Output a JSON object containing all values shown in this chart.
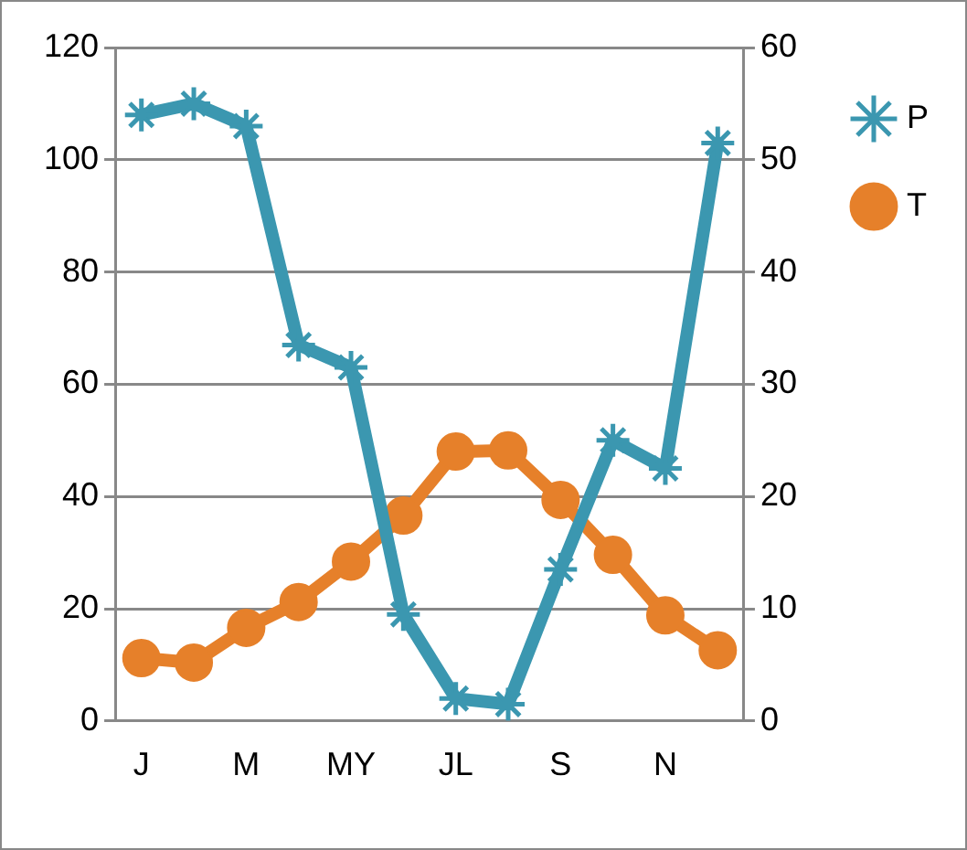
{
  "chart_data": {
    "type": "line",
    "categories": [
      "J",
      null,
      "M",
      null,
      "MY",
      null,
      "JL",
      null,
      "S",
      null,
      "N",
      null
    ],
    "series": [
      {
        "name": "P",
        "color": "#3b97b0",
        "marker": "cross",
        "values": [
          108,
          110,
          106,
          67,
          63,
          19,
          4,
          3,
          27,
          50,
          45,
          103
        ]
      },
      {
        "name": "T",
        "color": "#e6802a",
        "marker": "circle",
        "axis": "y2",
        "values": [
          5.6,
          5.2,
          8.3,
          10.6,
          14.2,
          18.3,
          24,
          24.1,
          19.7,
          14.8,
          9.4,
          6.3
        ]
      }
    ],
    "ylim": [
      0,
      120
    ],
    "yticks": [
      0,
      20,
      40,
      60,
      80,
      100,
      120
    ],
    "y2lim": [
      0,
      60
    ],
    "y2ticks": [
      0,
      10,
      20,
      30,
      40,
      50,
      60
    ],
    "grid": "y",
    "legend": "right",
    "line_style": "solid"
  }
}
